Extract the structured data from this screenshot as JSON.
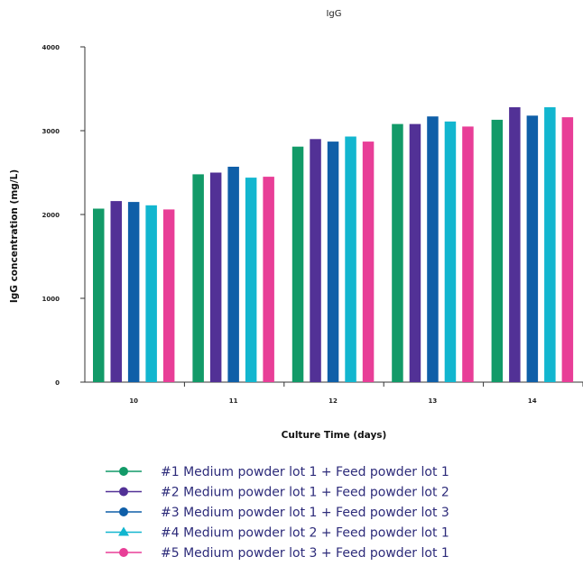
{
  "chart_data": {
    "type": "bar",
    "title": "IgG",
    "xlabel": "Culture Time (days)",
    "ylabel": "IgG concentration (mg/L)",
    "ylim": [
      0,
      4000
    ],
    "yticks": [
      "0",
      "1000",
      "2000",
      "3000",
      "4000"
    ],
    "categories": [
      "10",
      "11",
      "12",
      "13",
      "14"
    ],
    "grid": false,
    "legend_position": "bottom",
    "series": [
      {
        "name": "#1 Medium powder lot 1 + Feed powder lot 1",
        "color": "#129a68",
        "marker": "circle",
        "values": [
          2070,
          2480,
          2810,
          3080,
          3130
        ]
      },
      {
        "name": "#2 Medium powder lot 1 + Feed powder lot 2",
        "color": "#523196",
        "marker": "circle",
        "values": [
          2160,
          2500,
          2900,
          3080,
          3280
        ]
      },
      {
        "name": "#3 Medium powder lot 1 + Feed powder lot 3",
        "color": "#0f5fa8",
        "marker": "circle",
        "values": [
          2150,
          2570,
          2870,
          3170,
          3180
        ]
      },
      {
        "name": "#4 Medium powder lot 2 + Feed powder lot 1",
        "color": "#12b6cf",
        "marker": "triangle",
        "values": [
          2110,
          2440,
          2930,
          3110,
          3280
        ]
      },
      {
        "name": "#5 Medium powder lot 3 + Feed powder lot 1",
        "color": "#e83e97",
        "marker": "circle",
        "values": [
          2060,
          2450,
          2870,
          3050,
          3160
        ]
      }
    ]
  }
}
